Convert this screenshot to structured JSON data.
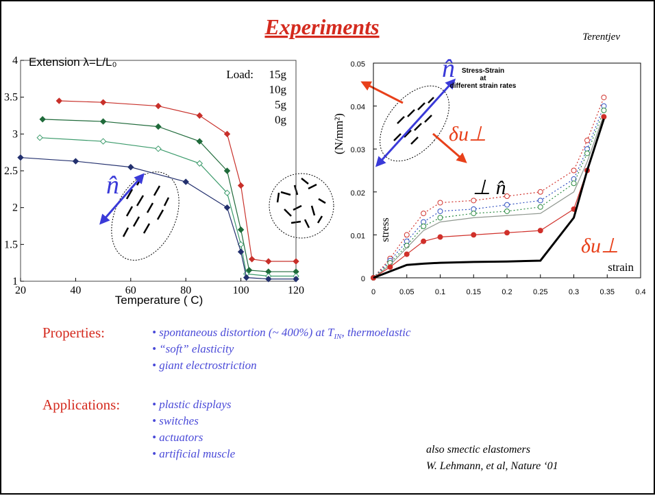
{
  "title": "Experiments",
  "author": "Terentjev",
  "chart_data": [
    {
      "type": "line",
      "title": "Extension λ=L/L₀",
      "x_label": "Temperature ( C)",
      "legend_title": "Load:",
      "xlim": [
        20,
        120
      ],
      "xticks": [
        20,
        40,
        60,
        80,
        100,
        120
      ],
      "ylim": [
        1,
        4
      ],
      "yticks": [
        1,
        1.5,
        2,
        2.5,
        3,
        3.5,
        4
      ],
      "annotations": [
        "n̂"
      ],
      "series": [
        {
          "name": "15g",
          "color": "#c8302a",
          "marker": "diamond",
          "x": [
            34,
            50,
            70,
            85,
            95,
            100,
            104,
            110,
            120
          ],
          "values": [
            3.45,
            3.43,
            3.38,
            3.25,
            3.0,
            2.3,
            1.3,
            1.27,
            1.27
          ]
        },
        {
          "name": "10g",
          "color": "#1f6a3a",
          "marker": "diamond",
          "x": [
            28,
            50,
            70,
            85,
            95,
            100,
            103,
            110,
            120
          ],
          "values": [
            3.2,
            3.17,
            3.1,
            2.9,
            2.5,
            1.7,
            1.15,
            1.13,
            1.13
          ]
        },
        {
          "name": "5g",
          "color": "#3a9a6a",
          "marker": "diamond-open",
          "x": [
            27,
            50,
            70,
            85,
            95,
            100,
            102,
            110,
            120
          ],
          "values": [
            2.95,
            2.9,
            2.8,
            2.6,
            2.2,
            1.5,
            1.1,
            1.07,
            1.07
          ]
        },
        {
          "name": "0g",
          "color": "#23306e",
          "marker": "diamond",
          "x": [
            20,
            40,
            60,
            80,
            95,
            100,
            102,
            110,
            120
          ],
          "values": [
            2.68,
            2.63,
            2.55,
            2.35,
            2.0,
            1.4,
            1.05,
            1.03,
            1.03
          ]
        }
      ]
    },
    {
      "type": "line",
      "title": [
        "Stress-Strain",
        "at",
        "different strain rates"
      ],
      "y_label": "(N/mm²)",
      "y_label_inner": "stress",
      "x_label": "strain",
      "xlim": [
        0,
        0.4
      ],
      "xticks": [
        0,
        0.05,
        0.1,
        0.15,
        0.2,
        0.25,
        0.3,
        0.35,
        0.4
      ],
      "ylim": [
        0,
        0.05
      ],
      "yticks": [
        0,
        0.01,
        0.02,
        0.03,
        0.04,
        0.05
      ],
      "annotations": [
        "n̂",
        "δu⊥",
        "⊥  n̂",
        "δu⊥"
      ],
      "x": [
        0,
        0.025,
        0.05,
        0.075,
        0.1,
        0.15,
        0.2,
        0.25,
        0.3,
        0.32,
        0.345
      ],
      "series": [
        {
          "color": "#d0302a",
          "marker": "circle-open",
          "dash": true,
          "values": [
            0,
            0.0045,
            0.01,
            0.015,
            0.0175,
            0.018,
            0.019,
            0.02,
            0.025,
            0.032,
            0.042
          ]
        },
        {
          "color": "#3050c0",
          "marker": "circle-open",
          "dash": true,
          "values": [
            0,
            0.004,
            0.0085,
            0.013,
            0.0155,
            0.016,
            0.017,
            0.018,
            0.023,
            0.03,
            0.04
          ]
        },
        {
          "color": "#2a8a40",
          "marker": "circle-open",
          "dash": true,
          "values": [
            0,
            0.0035,
            0.0075,
            0.012,
            0.014,
            0.015,
            0.0155,
            0.0165,
            0.022,
            0.029,
            0.039
          ]
        },
        {
          "color": "#909890",
          "marker": "none",
          "values": [
            0,
            0.003,
            0.007,
            0.011,
            0.013,
            0.014,
            0.0145,
            0.015,
            0.02,
            0.027,
            0.038
          ]
        },
        {
          "color": "#d0302a",
          "marker": "circle",
          "values": [
            0,
            0.0025,
            0.0055,
            0.0085,
            0.0095,
            0.01,
            0.0105,
            0.011,
            0.016,
            0.025,
            0.0375
          ]
        },
        {
          "color": "#000000",
          "marker": "none",
          "width": 3,
          "values": [
            0,
            0.0015,
            0.003,
            0.0033,
            0.0035,
            0.0037,
            0.0038,
            0.004,
            0.014,
            0.025,
            0.037
          ]
        }
      ]
    }
  ],
  "properties": {
    "label": "Properties:",
    "items": [
      [
        "spontaneous distortion (~ 400%) at ",
        "T",
        "IN",
        ", thermoelastic"
      ],
      [
        "“soft” elasticity"
      ],
      [
        "giant electrostriction"
      ]
    ]
  },
  "applications": {
    "label": "Applications:",
    "items": [
      [
        "plastic displays"
      ],
      [
        "switches"
      ],
      [
        "actuators"
      ],
      [
        "artificial muscle"
      ]
    ]
  },
  "reference": [
    "also smectic elastomers",
    "W. Lehmann, et al, Nature ‘01"
  ]
}
